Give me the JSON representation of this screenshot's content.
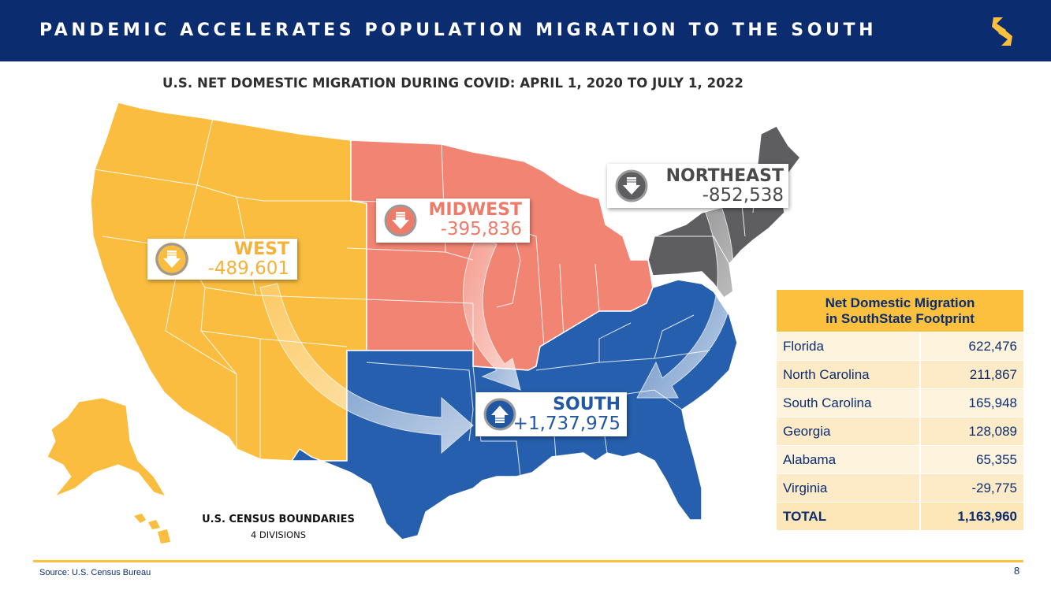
{
  "header": {
    "title": "PANDEMIC ACCELERATES POPULATION MIGRATION TO THE SOUTH"
  },
  "map": {
    "title": "U.S. NET DOMESTIC MIGRATION DURING COVID: APRIL 1, 2020 TO JULY 1, 2022",
    "legend_title": "U.S. CENSUS BOUNDARIES",
    "legend_subtitle": "4 DIVISIONS",
    "regions": [
      {
        "name": "WEST",
        "value": "-489,601",
        "color": "#fbbd3f",
        "text_color": "#f6b13a",
        "direction": "down"
      },
      {
        "name": "MIDWEST",
        "value": "-395,836",
        "color": "#f28473",
        "text_color": "#ee7a68",
        "direction": "down"
      },
      {
        "name": "NORTHEAST",
        "value": "-852,538",
        "color": "#5e5e60",
        "text_color": "#4a4a4a",
        "direction": "down"
      },
      {
        "name": "SOUTH",
        "value": "+1,737,975",
        "color": "#255fad",
        "text_color": "#2257a4",
        "direction": "up"
      }
    ]
  },
  "table": {
    "title_line1": "Net Domestic Migration",
    "title_line2": "in SouthState Footprint",
    "rows": [
      {
        "state": "Florida",
        "value": "622,476"
      },
      {
        "state": "North Carolina",
        "value": "211,867"
      },
      {
        "state": "South Carolina",
        "value": "165,948"
      },
      {
        "state": "Georgia",
        "value": "128,089"
      },
      {
        "state": "Alabama",
        "value": "65,355"
      },
      {
        "state": "Virginia",
        "value": "-29,775"
      }
    ],
    "total_label": "TOTAL",
    "total_value": "1,163,960"
  },
  "footer": {
    "source": "Source: U.S. Census Bureau",
    "page": "8"
  },
  "colors": {
    "navy": "#0b2c6e",
    "gold": "#fbc03e"
  }
}
